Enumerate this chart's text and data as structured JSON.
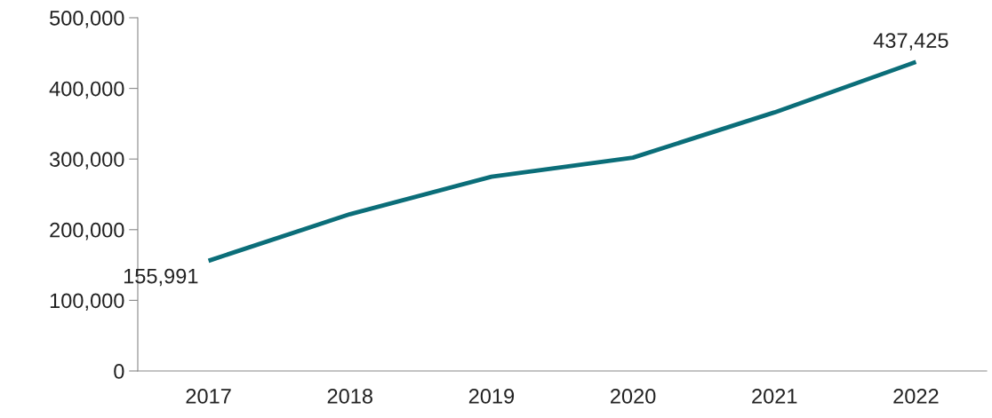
{
  "chart_data": {
    "type": "line",
    "categories": [
      "2017",
      "2018",
      "2019",
      "2020",
      "2021",
      "2022"
    ],
    "series": [
      {
        "color": "#0b6e79",
        "values": [
          155991,
          222000,
          275000,
          302000,
          366000,
          437425
        ],
        "value_labels": [
          "155,991",
          null,
          null,
          null,
          null,
          "437,425"
        ]
      }
    ],
    "ylim": [
      0,
      500000
    ],
    "yticks": [
      {
        "value": 0,
        "label": "0"
      },
      {
        "value": 100000,
        "label": "100,000"
      },
      {
        "value": 200000,
        "label": "200,000"
      },
      {
        "value": 300000,
        "label": "300,000"
      },
      {
        "value": 400000,
        "label": "400,000"
      },
      {
        "value": 500000,
        "label": "500,000"
      }
    ],
    "grid": false,
    "marker": "none",
    "line_style": "solid"
  }
}
